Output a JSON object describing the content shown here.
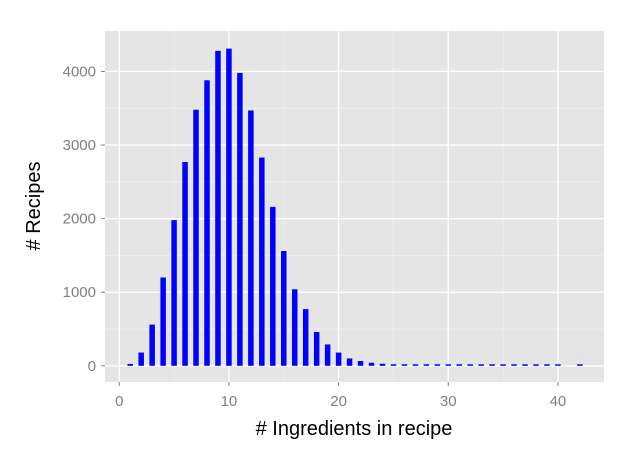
{
  "chart_data": {
    "type": "bar",
    "title": "",
    "xlabel": "# Ingredients in recipe",
    "ylabel": "# Recipes",
    "xlim": [
      -1.3,
      44.2
    ],
    "ylim": [
      -220,
      4550
    ],
    "x_ticks": [
      0,
      10,
      20,
      30,
      40
    ],
    "y_ticks": [
      0,
      1000,
      2000,
      3000,
      4000
    ],
    "grid": true,
    "legend": "none",
    "bar_color": "#0000ff",
    "panel_color": "#e5e5e5",
    "grid_color": "#ffffff",
    "x": [
      1,
      2,
      3,
      4,
      5,
      6,
      7,
      8,
      9,
      10,
      11,
      12,
      13,
      14,
      15,
      16,
      17,
      18,
      19,
      20,
      21,
      22,
      23,
      24,
      25,
      26,
      27,
      28,
      29,
      30,
      31,
      32,
      33,
      34,
      35,
      36,
      37,
      38,
      39,
      40,
      41,
      42,
      43
    ],
    "values": [
      25,
      180,
      560,
      1200,
      1980,
      2770,
      3480,
      3880,
      4280,
      4310,
      3980,
      3470,
      2830,
      2160,
      1560,
      1040,
      770,
      460,
      290,
      180,
      100,
      65,
      42,
      28,
      20,
      14,
      10,
      7,
      5,
      4,
      3,
      2,
      2,
      1,
      1,
      1,
      1,
      1,
      1,
      1,
      0,
      1,
      0
    ]
  }
}
